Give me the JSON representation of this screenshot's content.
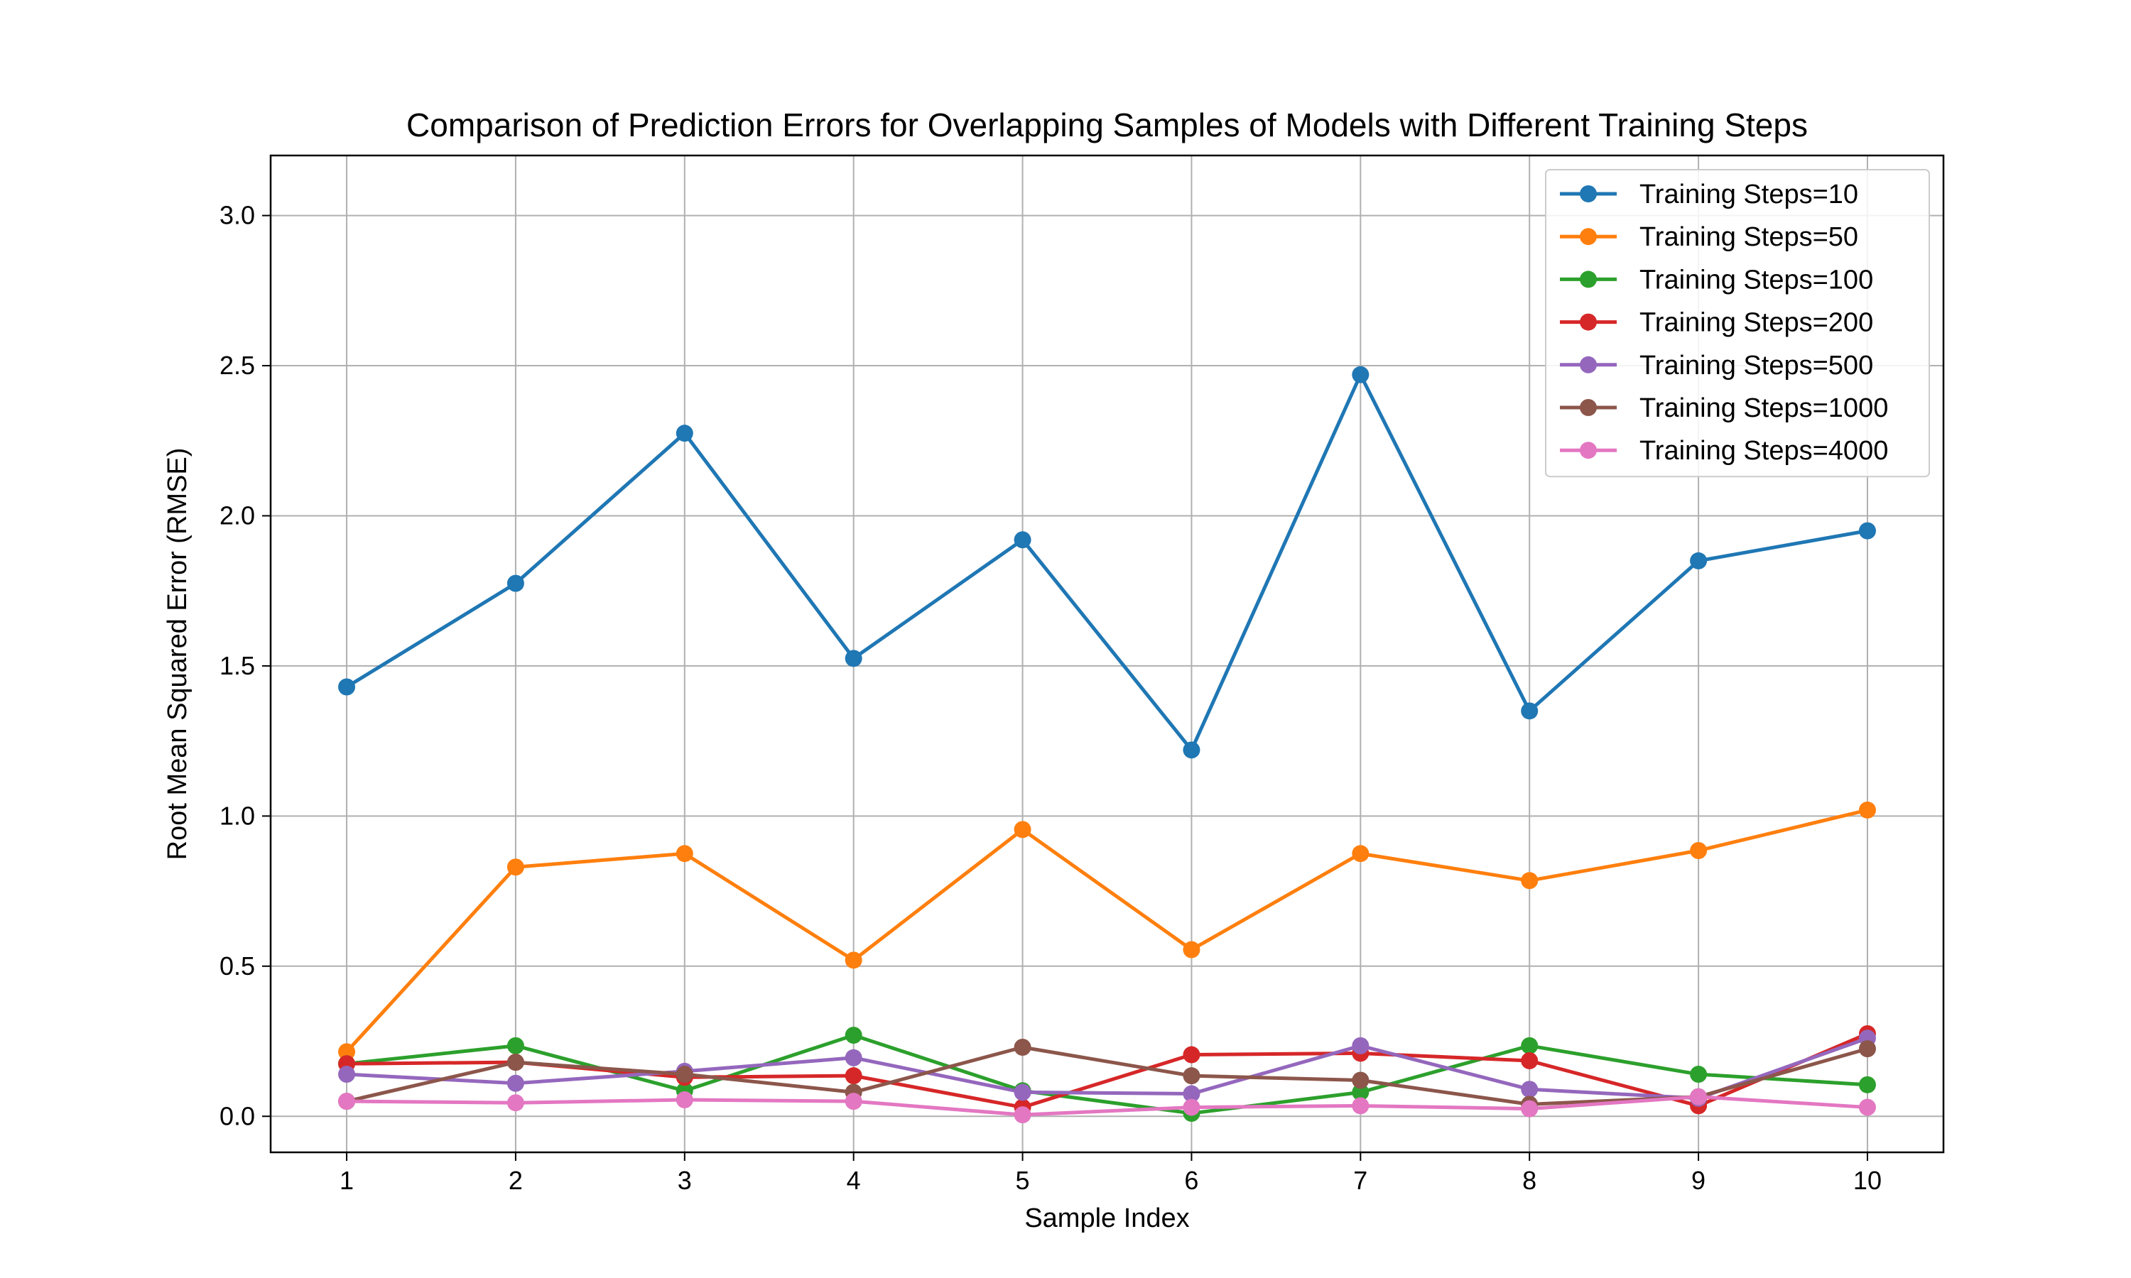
{
  "chart_data": {
    "type": "line",
    "title": "Comparison of Prediction Errors for Overlapping Samples of Models with Different Training Steps",
    "xlabel": "Sample Index",
    "ylabel": "Root Mean Squared Error (RMSE)",
    "x": [
      1,
      2,
      3,
      4,
      5,
      6,
      7,
      8,
      9,
      10
    ],
    "xlim": [
      0.55,
      10.45
    ],
    "ylim": [
      -0.12,
      3.2
    ],
    "xticks": [
      "1",
      "2",
      "3",
      "4",
      "5",
      "6",
      "7",
      "8",
      "9",
      "10"
    ],
    "yticks": [
      "0.0",
      "0.5",
      "1.0",
      "1.5",
      "2.0",
      "2.5",
      "3.0"
    ],
    "grid": true,
    "legend_position": "top-right",
    "series": [
      {
        "name": "Training Steps=10",
        "color": "#1f77b4",
        "values": [
          1.43,
          1.775,
          2.275,
          1.525,
          1.92,
          1.22,
          2.47,
          1.35,
          1.85,
          1.95
        ]
      },
      {
        "name": "Training Steps=50",
        "color": "#ff7f0e",
        "values": [
          0.215,
          0.83,
          0.875,
          0.52,
          0.955,
          0.555,
          0.875,
          0.785,
          0.885,
          1.02
        ]
      },
      {
        "name": "Training Steps=100",
        "color": "#2ca02c",
        "values": [
          0.175,
          0.235,
          0.085,
          0.27,
          0.085,
          0.01,
          0.08,
          0.235,
          0.14,
          0.105
        ]
      },
      {
        "name": "Training Steps=200",
        "color": "#d62728",
        "values": [
          0.175,
          0.18,
          0.13,
          0.135,
          0.03,
          0.205,
          0.21,
          0.185,
          0.035,
          0.275
        ]
      },
      {
        "name": "Training Steps=500",
        "color": "#9467bd",
        "values": [
          0.14,
          0.11,
          0.15,
          0.195,
          0.08,
          0.075,
          0.235,
          0.09,
          0.06,
          0.26
        ]
      },
      {
        "name": "Training Steps=1000",
        "color": "#8c564b",
        "values": [
          0.05,
          0.18,
          0.14,
          0.08,
          0.23,
          0.135,
          0.12,
          0.04,
          0.065,
          0.225
        ]
      },
      {
        "name": "Training Steps=4000",
        "color": "#e377c2",
        "values": [
          0.05,
          0.045,
          0.055,
          0.05,
          0.005,
          0.03,
          0.035,
          0.025,
          0.065,
          0.03
        ]
      }
    ]
  }
}
